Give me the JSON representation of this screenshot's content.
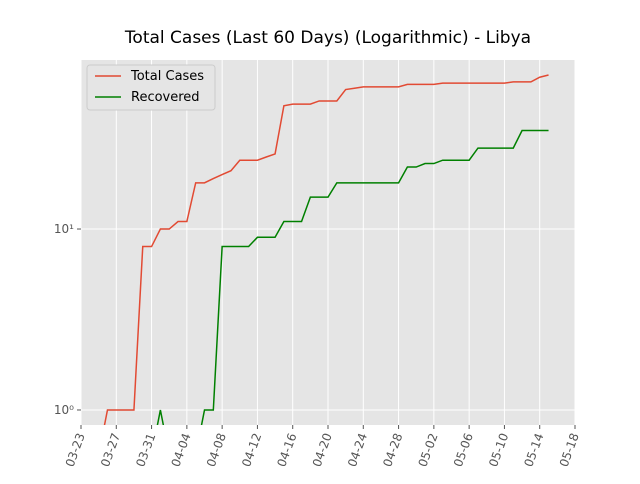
{
  "chart_data": {
    "type": "line",
    "title": "Total Cases (Last 60 Days) (Logarithmic) - Libya",
    "x": [
      "03-25",
      "03-26",
      "03-27",
      "03-28",
      "03-29",
      "03-30",
      "03-31",
      "04-01",
      "04-02",
      "04-03",
      "04-04",
      "04-05",
      "04-06",
      "04-07",
      "04-08",
      "04-09",
      "04-10",
      "04-11",
      "04-12",
      "04-13",
      "04-14",
      "04-15",
      "04-16",
      "04-17",
      "04-18",
      "04-19",
      "04-20",
      "04-21",
      "04-22",
      "04-23",
      "04-24",
      "04-25",
      "04-26",
      "04-27",
      "04-28",
      "04-29",
      "04-30",
      "05-01",
      "05-02",
      "05-03",
      "05-04",
      "05-05",
      "05-06",
      "05-07",
      "05-08",
      "05-09",
      "05-10",
      "05-11",
      "05-12",
      "05-13",
      "05-14",
      "05-15"
    ],
    "series": [
      {
        "name": "Total Cases",
        "color": "#e24a33",
        "values": [
          0,
          1,
          1,
          1,
          1,
          8,
          8,
          10,
          10,
          11,
          11,
          18,
          18,
          19,
          20,
          21,
          24,
          24,
          24,
          25,
          26,
          48,
          49,
          49,
          49,
          51,
          51,
          51,
          59,
          60,
          61,
          61,
          61,
          61,
          61,
          63,
          63,
          63,
          63,
          64,
          64,
          64,
          64,
          64,
          64,
          64,
          64,
          65,
          65,
          65,
          69,
          71
        ]
      },
      {
        "name": "Recovered",
        "color": "#008000",
        "values": [
          0,
          0,
          0,
          0,
          0,
          0,
          0,
          1,
          0,
          0,
          0,
          0,
          1,
          1,
          8,
          8,
          8,
          8,
          9,
          9,
          9,
          11,
          11,
          11,
          15,
          15,
          15,
          18,
          18,
          18,
          18,
          18,
          18,
          18,
          18,
          22,
          22,
          23,
          23,
          24,
          24,
          24,
          24,
          28,
          28,
          28,
          28,
          28,
          35,
          35,
          35,
          35
        ]
      }
    ],
    "xlim": [
      "03-23",
      "05-18"
    ],
    "xticks": [
      "03-23",
      "03-27",
      "03-31",
      "04-04",
      "04-08",
      "04-12",
      "04-16",
      "04-20",
      "04-24",
      "04-28",
      "05-02",
      "05-06",
      "05-10",
      "05-14",
      "05-18"
    ],
    "ylim": [
      0.826,
      85.9
    ],
    "yticks": [
      {
        "value": 1,
        "label": "10⁰"
      },
      {
        "value": 10,
        "label": "10¹"
      }
    ],
    "log_y": true,
    "grid": true,
    "legend": "upper left"
  }
}
